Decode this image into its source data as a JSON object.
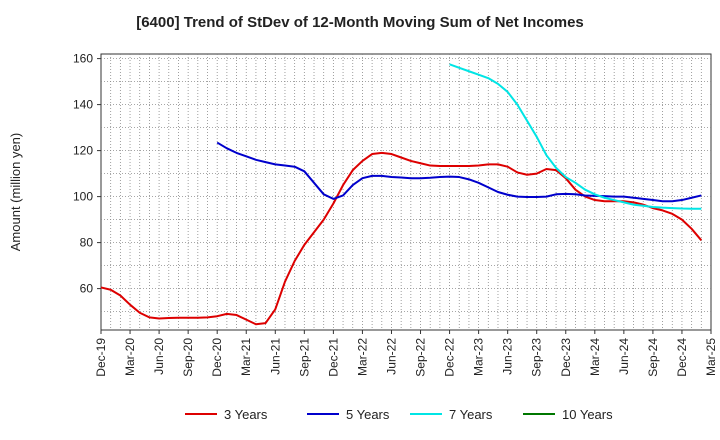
{
  "chart_data": {
    "type": "line",
    "title": "[6400]  Trend of StDev of 12-Month Moving Sum of Net Incomes",
    "ylabel": "Amount (million yen)",
    "xlabel": "",
    "ylim": [
      42,
      162
    ],
    "yticks": [
      60,
      80,
      100,
      120,
      140,
      160
    ],
    "grid": true,
    "legend_position": "bottom",
    "x_tick_labels": [
      "Dec-19",
      "Mar-20",
      "Jun-20",
      "Sep-20",
      "Dec-20",
      "Mar-21",
      "Jun-21",
      "Sep-21",
      "Dec-21",
      "Mar-22",
      "Jun-22",
      "Sep-22",
      "Dec-22",
      "Mar-23",
      "Jun-23",
      "Sep-23",
      "Dec-23",
      "Mar-24",
      "Jun-24",
      "Sep-24",
      "Dec-24",
      "Mar-25"
    ],
    "series": [
      {
        "name": "3 Years",
        "color": "#dd0000",
        "start_index": 0,
        "values": [
          60.5,
          59.5,
          57,
          53,
          49.5,
          47.5,
          47,
          47.2,
          47.3,
          47.3,
          47.3,
          47.5,
          48,
          49,
          48.5,
          46.5,
          44.5,
          45,
          51,
          63,
          72,
          79,
          84.5,
          90,
          97,
          105,
          111.5,
          115.5,
          118.5,
          119,
          118.5,
          117,
          115.5,
          114.5,
          113.5,
          113.3,
          113.3,
          113.3,
          113.3,
          113.5,
          114,
          114,
          113,
          110.5,
          109.5,
          110,
          112,
          111.5,
          108,
          103,
          100,
          98.5,
          98,
          98,
          98,
          97.5,
          96.5,
          95,
          94,
          92.5,
          90,
          86,
          81
        ]
      },
      {
        "name": "5 Years",
        "color": "#0000cc",
        "start_index": 12,
        "values": [
          123.5,
          121,
          119,
          117.5,
          116,
          115,
          114,
          113.5,
          113,
          111,
          106,
          101,
          99,
          100.5,
          105,
          108,
          109,
          109,
          108.5,
          108.3,
          108,
          108,
          108.2,
          108.5,
          108.7,
          108.5,
          107.5,
          106,
          104,
          102,
          100.8,
          100,
          99.8,
          99.8,
          100,
          101,
          101.2,
          101,
          100.5,
          100.3,
          100.2,
          100,
          100,
          99.5,
          99,
          98.5,
          98,
          98,
          98.5,
          99.5,
          100.5
        ]
      },
      {
        "name": "7 Years",
        "color": "#00e5e5",
        "start_index": 36,
        "values": [
          157.5,
          156,
          154.5,
          153,
          151.5,
          149,
          145.5,
          140,
          133,
          126,
          118,
          112.5,
          108.5,
          106,
          103,
          101,
          99.5,
          98.5,
          97.5,
          96.5,
          96,
          95.5,
          95.2,
          95,
          94.8,
          94.7,
          94.7
        ]
      },
      {
        "name": "10 Years",
        "color": "#007700",
        "start_index": 0,
        "values": []
      }
    ]
  }
}
